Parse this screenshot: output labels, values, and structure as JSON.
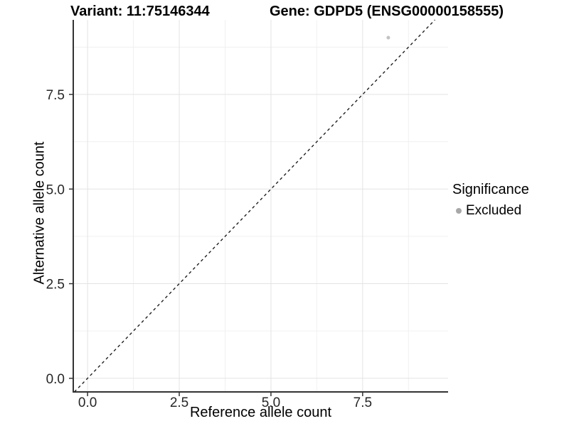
{
  "chart_data": {
    "type": "scatter",
    "title_variant": "Variant: 11:75146344",
    "title_gene": "Gene: GDPD5 (ENSG00000158555)",
    "xlabel": "Reference allele count",
    "ylabel": "Alternative allele count",
    "xlim": [
      -0.39,
      9.83
    ],
    "ylim": [
      -0.36,
      9.47
    ],
    "x_ticks": [
      0,
      2.5,
      5,
      7.5
    ],
    "y_ticks": [
      0,
      2.5,
      5,
      7.5
    ],
    "x_tick_labels": [
      "0.0",
      "2.5",
      "5.0",
      "7.5"
    ],
    "y_tick_labels": [
      "0.0",
      "2.5",
      "5.0",
      "7.5"
    ],
    "x_minor_ticks": [
      1.25,
      3.75,
      6.25,
      8.75
    ],
    "y_minor_ticks": [
      1.25,
      3.75,
      6.25,
      8.75
    ],
    "grid": true,
    "series": [
      {
        "name": "Excluded",
        "color": "#c2c2c2",
        "marker": "circle",
        "marker_radius": 2.5,
        "points": [
          [
            8.2,
            9.0
          ]
        ]
      }
    ],
    "reference_line": {
      "type": "identity y = x",
      "style": "dashed",
      "color": "#1a1a1a"
    },
    "legend": {
      "title": "Significance",
      "position": "right",
      "entries": [
        {
          "label": "Excluded",
          "color": "#a8a8a8"
        }
      ]
    }
  },
  "colors": {
    "background": "#ffffff",
    "axis_line": "#333333",
    "tick_mark": "#333333",
    "tick_label": "#262626",
    "grid_major": "#e3e3e3",
    "grid_minor": "#f0f0f0"
  }
}
